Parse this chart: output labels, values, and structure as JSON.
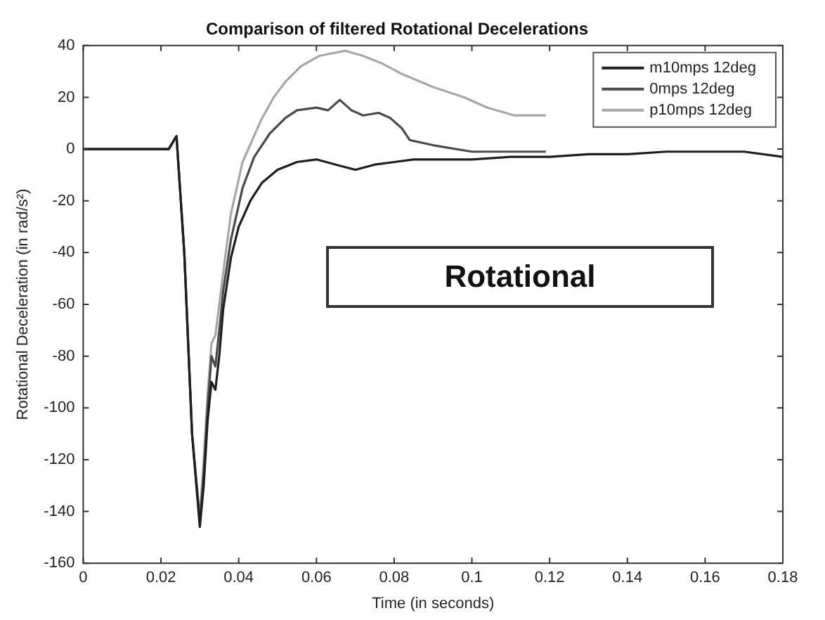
{
  "chart_data": {
    "type": "line",
    "title": "Comparison of filtered Rotational Decelerations",
    "xlabel": "Time (in seconds)",
    "ylabel": "Rotational Deceleration (in rad/s²)",
    "annotations": [
      "Rotational"
    ],
    "xlim": [
      0,
      0.18
    ],
    "xticks": [
      0,
      0.02,
      0.04,
      0.06,
      0.08,
      0.1,
      0.12,
      0.14,
      0.16,
      0.18
    ],
    "ylim": [
      -160,
      40
    ],
    "yticks": [
      -160,
      -140,
      -120,
      -100,
      -80,
      -60,
      -40,
      -20,
      0,
      20,
      40
    ],
    "grid": false,
    "legend": "top right",
    "marker": "none",
    "line_style": "solid",
    "series": [
      {
        "name": "m10mps 12deg",
        "color": "#1e1e1e",
        "x": [
          0,
          0.01,
          0.02,
          0.022,
          0.024,
          0.026,
          0.028,
          0.03,
          0.031,
          0.032,
          0.033,
          0.034,
          0.035,
          0.036,
          0.038,
          0.04,
          0.043,
          0.046,
          0.05,
          0.055,
          0.06,
          0.065,
          0.07,
          0.075,
          0.08,
          0.085,
          0.09,
          0.1,
          0.11,
          0.12,
          0.13,
          0.14,
          0.15,
          0.16,
          0.17,
          0.18
        ],
        "values": [
          0,
          0,
          0,
          0,
          5,
          -40,
          -110,
          -146,
          -130,
          -105,
          -90,
          -93,
          -80,
          -62,
          -42,
          -30,
          -20,
          -13,
          -8,
          -5,
          -4,
          -6,
          -8,
          -6,
          -5,
          -4,
          -4,
          -4,
          -3,
          -3,
          -2,
          -2,
          -1,
          -1,
          -1,
          -3
        ]
      },
      {
        "name": "0mps 12deg",
        "color": "#4a4a4a",
        "x": [
          0,
          0.01,
          0.02,
          0.022,
          0.024,
          0.026,
          0.028,
          0.03,
          0.031,
          0.032,
          0.033,
          0.034,
          0.035,
          0.036,
          0.038,
          0.041,
          0.044,
          0.048,
          0.052,
          0.055,
          0.06,
          0.063,
          0.066,
          0.069,
          0.072,
          0.076,
          0.079,
          0.082,
          0.084,
          0.09,
          0.1,
          0.11,
          0.119
        ],
        "values": [
          0,
          0,
          0,
          0,
          5,
          -40,
          -110,
          -144,
          -125,
          -100,
          -80,
          -84,
          -70,
          -55,
          -35,
          -15,
          -3,
          6,
          12,
          15,
          16,
          15,
          19,
          15,
          13,
          14,
          12,
          8,
          3.5,
          1.5,
          -1,
          -1,
          -1
        ]
      },
      {
        "name": "p10mps 12deg",
        "color": "#a8a8a8",
        "x": [
          0,
          0.01,
          0.02,
          0.022,
          0.024,
          0.026,
          0.028,
          0.03,
          0.031,
          0.032,
          0.033,
          0.034,
          0.036,
          0.038,
          0.041,
          0.0457,
          0.049,
          0.052,
          0.056,
          0.0607,
          0.0675,
          0.072,
          0.077,
          0.082,
          0.09,
          0.098,
          0.104,
          0.111,
          0.119
        ],
        "values": [
          0,
          0,
          0,
          0,
          5,
          -40,
          -110,
          -142,
          -120,
          -95,
          -75,
          -72,
          -48,
          -25,
          -5,
          11,
          20,
          26,
          32,
          36,
          38,
          36,
          33,
          29,
          24,
          20,
          16,
          13,
          13
        ]
      }
    ]
  }
}
